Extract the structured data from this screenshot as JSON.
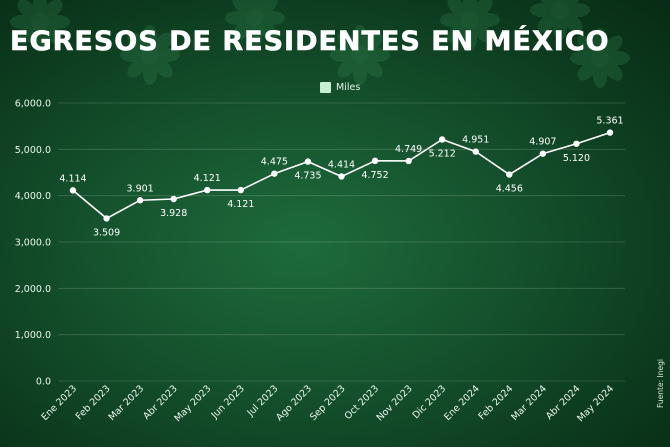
{
  "title": "EGRESOS DE RESIDENTES EN MÉXICO",
  "legend_label": "Miles",
  "source": "Fuente: Inegi",
  "colors": {
    "background": "#15522d",
    "line": "#ffffff",
    "legend": "#c4f0d3"
  },
  "chart_data": {
    "type": "line",
    "categories": [
      "Ene 2023",
      "Feb 2023",
      "Mar 2023",
      "Abr 2023",
      "May 2023",
      "Jun 2023",
      "Jul 2023",
      "Ago 2023",
      "Sep 2023",
      "Oct 2023",
      "Nov 2023",
      "Dic 2023",
      "Ene 2024",
      "Feb 2024",
      "Mar 2024",
      "Abr 2024",
      "May 2024"
    ],
    "series": [
      {
        "name": "Miles",
        "values": [
          4114,
          3509,
          3901,
          3928,
          4121,
          4121,
          4475,
          4735,
          4414,
          4752,
          4749,
          5212,
          4951,
          4456,
          4907,
          5120,
          5361
        ],
        "labels": [
          "4.114",
          "3.509",
          "3.901",
          "3.928",
          "4.121",
          "4.121",
          "4.475",
          "4.735",
          "4.414",
          "4.752",
          "4.749",
          "5.212",
          "4.951",
          "4.456",
          "4.907",
          "5.120",
          "5.361"
        ],
        "label_position": [
          "above",
          "below",
          "above",
          "below",
          "above",
          "below",
          "above",
          "below",
          "above",
          "below",
          "above",
          "below",
          "above",
          "below",
          "above",
          "below",
          "above"
        ]
      }
    ],
    "yticks": [
      "0.0",
      "1,000.0",
      "2,000.0",
      "3,000.0",
      "4,000.0",
      "5,000.0",
      "6,000.0"
    ],
    "ylim": [
      0,
      6000
    ],
    "grid": true,
    "legend_position": "top-center"
  }
}
